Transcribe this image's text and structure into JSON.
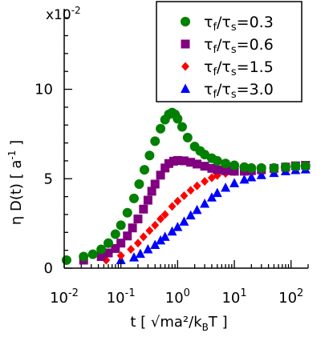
{
  "chart_data": {
    "type": "scatter",
    "title": "",
    "xlabel": "t [ √ma²/k",
    "xlabel_sub": "B",
    "xlabel_tail": "T ]",
    "ylabel": "η D(t) [ a",
    "ylabel_sup": "-1",
    "ylabel_tail": " ]",
    "y_multiplier_base": "x10",
    "y_multiplier_exp": "-2",
    "xscale": "log",
    "xlim": [
      0.01,
      200
    ],
    "ylim": [
      0,
      14.5
    ],
    "grid": false,
    "legend_position": "top-right",
    "x_tick_labels": [
      {
        "base": "10",
        "exp": "-2",
        "value": 0.01
      },
      {
        "base": "10",
        "exp": "-1",
        "value": 0.1
      },
      {
        "base": "10",
        "exp": "0",
        "value": 1
      },
      {
        "base": "10",
        "exp": "1",
        "value": 10
      },
      {
        "base": "10",
        "exp": "2",
        "value": 100
      }
    ],
    "y_tick_labels": [
      {
        "label": "0",
        "value": 0
      },
      {
        "label": "5",
        "value": 5
      },
      {
        "label": "10",
        "value": 10
      }
    ],
    "series": [
      {
        "name": "τf/τs=0.3",
        "name_parts": [
          "τ",
          "f",
          "/τ",
          "s",
          "=0.3"
        ],
        "color": "#008000",
        "marker": "circle",
        "points": [
          [
            0.011,
            0.45
          ],
          [
            0.022,
            0.65
          ],
          [
            0.032,
            0.78
          ],
          [
            0.045,
            1.05
          ],
          [
            0.06,
            1.4
          ],
          [
            0.08,
            1.9
          ],
          [
            0.1,
            2.4
          ],
          [
            0.13,
            3.1
          ],
          [
            0.17,
            3.9
          ],
          [
            0.21,
            4.7
          ],
          [
            0.26,
            5.5
          ],
          [
            0.32,
            6.3
          ],
          [
            0.4,
            7.1
          ],
          [
            0.5,
            7.8
          ],
          [
            0.6,
            8.3
          ],
          [
            0.7,
            8.6
          ],
          [
            0.8,
            8.7
          ],
          [
            0.9,
            8.6
          ],
          [
            1.0,
            8.35
          ],
          [
            1.2,
            7.9
          ],
          [
            1.5,
            7.3
          ],
          [
            2.0,
            6.8
          ],
          [
            2.5,
            6.55
          ],
          [
            3.0,
            6.35
          ],
          [
            4.0,
            6.15
          ],
          [
            5.0,
            6.0
          ],
          [
            7.0,
            5.85
          ],
          [
            10,
            5.75
          ],
          [
            15,
            5.65
          ],
          [
            20,
            5.6
          ],
          [
            30,
            5.6
          ],
          [
            50,
            5.6
          ],
          [
            80,
            5.65
          ],
          [
            120,
            5.7
          ],
          [
            180,
            5.72
          ]
        ]
      },
      {
        "name": "τf/τs=0.6",
        "name_parts": [
          "τ",
          "f",
          "/τ",
          "s",
          "=0.6"
        ],
        "color": "#800080",
        "marker": "square",
        "points": [
          [
            0.022,
            0.45
          ],
          [
            0.045,
            0.65
          ],
          [
            0.06,
            0.85
          ],
          [
            0.08,
            1.1
          ],
          [
            0.1,
            1.4
          ],
          [
            0.13,
            1.8
          ],
          [
            0.16,
            2.25
          ],
          [
            0.2,
            2.75
          ],
          [
            0.25,
            3.3
          ],
          [
            0.3,
            3.8
          ],
          [
            0.35,
            4.3
          ],
          [
            0.4,
            4.7
          ],
          [
            0.5,
            5.2
          ],
          [
            0.6,
            5.6
          ],
          [
            0.7,
            5.85
          ],
          [
            0.85,
            5.98
          ],
          [
            1.0,
            6.02
          ],
          [
            1.3,
            6.0
          ],
          [
            1.7,
            5.92
          ],
          [
            2.2,
            5.82
          ],
          [
            3.0,
            5.7
          ],
          [
            4.0,
            5.58
          ],
          [
            5.0,
            5.5
          ],
          [
            7.0,
            5.45
          ],
          [
            10,
            5.42
          ],
          [
            15,
            5.42
          ],
          [
            20,
            5.45
          ],
          [
            30,
            5.5
          ],
          [
            50,
            5.58
          ],
          [
            80,
            5.65
          ],
          [
            120,
            5.72
          ],
          [
            180,
            5.75
          ]
        ]
      },
      {
        "name": "τf/τs=1.5",
        "name_parts": [
          "τ",
          "f",
          "/τ",
          "s",
          "=1.5"
        ],
        "color": "#ff0000",
        "marker": "diamond",
        "points": [
          [
            0.055,
            0.45
          ],
          [
            0.1,
            0.7
          ],
          [
            0.15,
            1.05
          ],
          [
            0.2,
            1.4
          ],
          [
            0.25,
            1.75
          ],
          [
            0.32,
            2.1
          ],
          [
            0.4,
            2.4
          ],
          [
            0.5,
            2.75
          ],
          [
            0.6,
            3.0
          ],
          [
            0.8,
            3.45
          ],
          [
            1.0,
            3.75
          ],
          [
            1.3,
            4.05
          ],
          [
            1.7,
            4.35
          ],
          [
            2.2,
            4.6
          ],
          [
            3.0,
            4.85
          ],
          [
            4.0,
            5.05
          ],
          [
            5.0,
            5.18
          ],
          [
            7.0,
            5.3
          ],
          [
            10,
            5.4
          ],
          [
            15,
            5.48
          ],
          [
            20,
            5.52
          ],
          [
            30,
            5.58
          ],
          [
            50,
            5.62
          ],
          [
            80,
            5.66
          ],
          [
            120,
            5.7
          ],
          [
            180,
            5.72
          ]
        ]
      },
      {
        "name": "τf/τs=3.0",
        "name_parts": [
          "τ",
          "f",
          "/τ",
          "s",
          "=3.0"
        ],
        "color": "#0000ff",
        "marker": "triangle",
        "points": [
          [
            0.1,
            0.45
          ],
          [
            0.17,
            0.6
          ],
          [
            0.22,
            0.8
          ],
          [
            0.3,
            1.05
          ],
          [
            0.4,
            1.3
          ],
          [
            0.5,
            1.55
          ],
          [
            0.6,
            1.75
          ],
          [
            0.8,
            2.05
          ],
          [
            1.0,
            2.3
          ],
          [
            1.3,
            2.6
          ],
          [
            1.7,
            2.95
          ],
          [
            2.2,
            3.25
          ],
          [
            3.0,
            3.6
          ],
          [
            4.0,
            3.95
          ],
          [
            5.0,
            4.2
          ],
          [
            7.0,
            4.5
          ],
          [
            10,
            4.75
          ],
          [
            15,
            4.95
          ],
          [
            20,
            5.08
          ],
          [
            30,
            5.2
          ],
          [
            50,
            5.32
          ],
          [
            80,
            5.42
          ],
          [
            120,
            5.48
          ],
          [
            180,
            5.52
          ]
        ]
      }
    ]
  }
}
